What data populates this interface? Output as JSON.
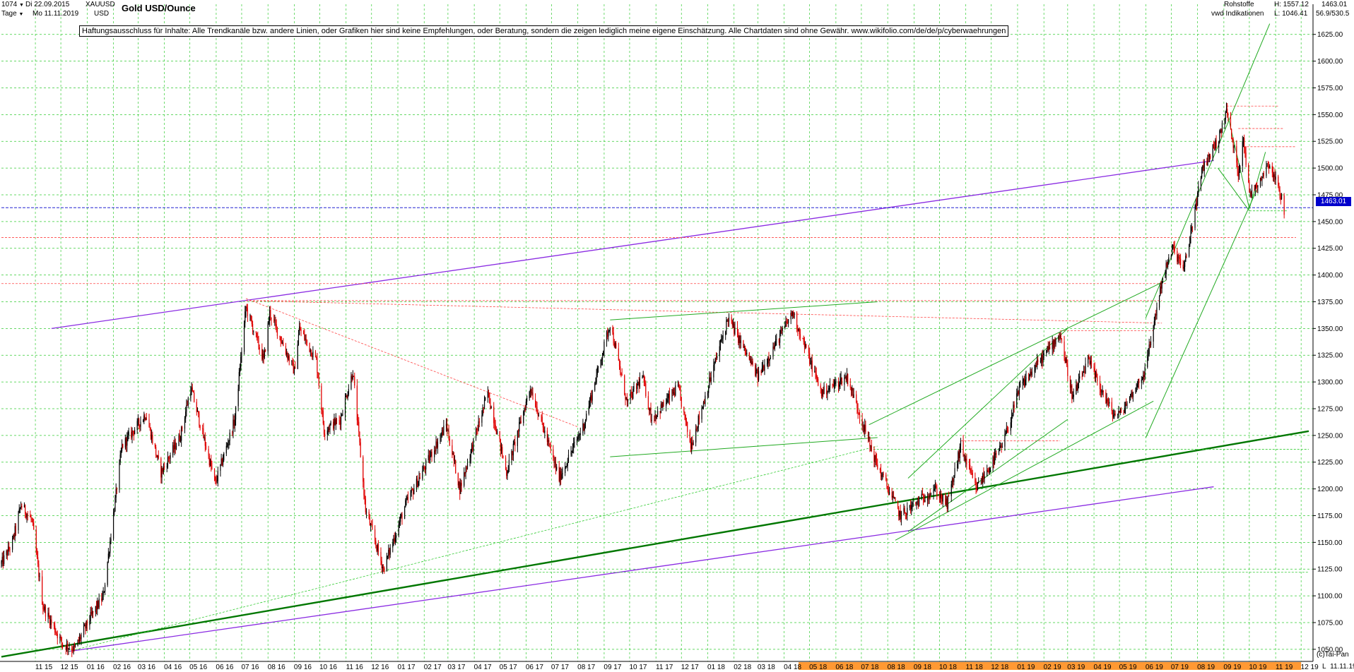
{
  "header": {
    "count": "1074",
    "count_arrow": "▼",
    "start_date": "Di 22.09.2015",
    "period": "Tage",
    "period_arrow": "▼",
    "end_date": "Mo 11.11.2019",
    "symbol": "XAUUSD",
    "currency": "USD",
    "title": "Gold USD/Ounce",
    "category": "Rohstoffe",
    "source": "vwd Indikationen",
    "high_label": "H: 1557.12",
    "low_label": "L: 1046.41",
    "last_value": "1463.01",
    "extra_value": "56.9/530.5"
  },
  "disclaimer": "Haftungsausschluss für Inhalte: Alle Trendkanäle bzw. andere Linien, oder Grafiken hier sind keine Empfehlungen, oder Beratung, sondern die zeigen lediglich meine eigene Einschätzung. Alle Chartdaten sind ohne Gewähr.  www.wikifolio.com/de/de/p/cyberwaehrungen",
  "footer": {
    "credit": "(c)Tai-Pan",
    "last_date": "11.11.19",
    "axis_letter": "L"
  },
  "colors": {
    "up_candle": "#000000",
    "down_candle": "#e00000",
    "grid": "#33cc33",
    "trend_green": "#007700",
    "channel_green": "#22aa22",
    "purple": "#8a2be2",
    "resistance_red": "#ff4444",
    "price_marker": "#0000cc",
    "future_band": "#ff9933"
  },
  "chart_data": {
    "type": "candlestick",
    "title": "Gold USD/Ounce",
    "ylim": [
      1040,
      1640
    ],
    "grid": true,
    "last_price": 1463.01,
    "high": 1557.12,
    "low": 1046.41,
    "yticks": [
      1050,
      1075,
      1100,
      1125,
      1150,
      1175,
      1200,
      1225,
      1250,
      1275,
      1300,
      1325,
      1350,
      1375,
      1400,
      1425,
      1450,
      1475,
      1500,
      1525,
      1550,
      1575,
      1600,
      1625
    ],
    "ytick_labels": [
      "1050.00",
      "1075.00",
      "1100.00",
      "1125.00",
      "1150.00",
      "1175.00",
      "1200.00",
      "1225.00",
      "1250.00",
      "1275.00",
      "1300.00",
      "1325.00",
      "1350.00",
      "1375.00",
      "1400.00",
      "1425.00",
      "1450.00",
      "1475.00",
      "1500.00",
      "1525.00",
      "1550.00",
      "1575.00",
      "1600.00",
      "1625.00"
    ],
    "xtick_labels": [
      "11 15",
      "12 15",
      "01 16",
      "02 16",
      "03 16",
      "04 16",
      "05 16",
      "06 16",
      "07 16",
      "08 16",
      "09 16",
      "10 16",
      "11 16",
      "12 16",
      "01 17",
      "02 17",
      "03 17",
      "04 17",
      "05 17",
      "06 17",
      "07 17",
      "08 17",
      "09 17",
      "10 17",
      "11 17",
      "12 17",
      "01 18",
      "02 18",
      "03 18",
      "04 18",
      "05 18",
      "06 18",
      "07 18",
      "08 18",
      "09 18",
      "10 18",
      "11 18",
      "12 18",
      "01 19",
      "02 19",
      "03 19",
      "04 19",
      "05 19",
      "06 19",
      "07 19",
      "08 19",
      "09 19",
      "10 19",
      "11 19",
      "12 19"
    ],
    "price_path": [
      [
        "2015-09-22",
        1130
      ],
      [
        "2015-10-05",
        1150
      ],
      [
        "2015-10-15",
        1185
      ],
      [
        "2015-10-28",
        1170
      ],
      [
        "2015-11-10",
        1090
      ],
      [
        "2015-12-03",
        1055
      ],
      [
        "2015-12-17",
        1050
      ],
      [
        "2016-01-05",
        1080
      ],
      [
        "2016-01-20",
        1100
      ],
      [
        "2016-02-11",
        1240
      ],
      [
        "2016-03-10",
        1270
      ],
      [
        "2016-03-28",
        1215
      ],
      [
        "2016-04-20",
        1250
      ],
      [
        "2016-05-02",
        1295
      ],
      [
        "2016-05-31",
        1205
      ],
      [
        "2016-06-23",
        1265
      ],
      [
        "2016-07-06",
        1370
      ],
      [
        "2016-07-27",
        1320
      ],
      [
        "2016-08-03",
        1365
      ],
      [
        "2016-09-01",
        1310
      ],
      [
        "2016-09-07",
        1350
      ],
      [
        "2016-09-27",
        1320
      ],
      [
        "2016-10-06",
        1255
      ],
      [
        "2016-10-25",
        1265
      ],
      [
        "2016-11-09",
        1310
      ],
      [
        "2016-11-24",
        1180
      ],
      [
        "2016-12-15",
        1125
      ],
      [
        "2017-01-10",
        1185
      ],
      [
        "2017-02-27",
        1260
      ],
      [
        "2017-03-15",
        1200
      ],
      [
        "2017-04-17",
        1290
      ],
      [
        "2017-05-09",
        1215
      ],
      [
        "2017-06-06",
        1295
      ],
      [
        "2017-07-10",
        1210
      ],
      [
        "2017-08-08",
        1260
      ],
      [
        "2017-09-08",
        1355
      ],
      [
        "2017-09-28",
        1280
      ],
      [
        "2017-10-16",
        1305
      ],
      [
        "2017-10-27",
        1265
      ],
      [
        "2017-11-27",
        1295
      ],
      [
        "2017-12-12",
        1240
      ],
      [
        "2018-01-25",
        1360
      ],
      [
        "2018-03-01",
        1305
      ],
      [
        "2018-04-11",
        1365
      ],
      [
        "2018-05-15",
        1290
      ],
      [
        "2018-06-14",
        1305
      ],
      [
        "2018-07-18",
        1225
      ],
      [
        "2018-08-16",
        1175
      ],
      [
        "2018-09-25",
        1200
      ],
      [
        "2018-10-10",
        1185
      ],
      [
        "2018-10-26",
        1240
      ],
      [
        "2018-11-13",
        1200
      ],
      [
        "2018-12-14",
        1240
      ],
      [
        "2019-01-04",
        1295
      ],
      [
        "2019-02-20",
        1345
      ],
      [
        "2019-03-07",
        1285
      ],
      [
        "2019-03-25",
        1320
      ],
      [
        "2019-04-23",
        1270
      ],
      [
        "2019-05-02",
        1270
      ],
      [
        "2019-05-31",
        1310
      ],
      [
        "2019-06-20",
        1395
      ],
      [
        "2019-07-03",
        1425
      ],
      [
        "2019-07-16",
        1405
      ],
      [
        "2019-08-07",
        1500
      ],
      [
        "2019-08-27",
        1530
      ],
      [
        "2019-09-04",
        1555
      ],
      [
        "2019-09-18",
        1495
      ],
      [
        "2019-09-24",
        1530
      ],
      [
        "2019-10-01",
        1475
      ],
      [
        "2019-10-14",
        1490
      ],
      [
        "2019-10-24",
        1505
      ],
      [
        "2019-11-05",
        1480
      ],
      [
        "2019-11-11",
        1460
      ]
    ],
    "horizontal_levels": [
      {
        "value": 1463.01,
        "style": "dashed",
        "color": "blue"
      },
      {
        "value": 1435,
        "style": "dashed",
        "color": "red"
      },
      {
        "value": 1392,
        "style": "dashed",
        "color": "red"
      },
      {
        "value": 1558,
        "style": "dashed",
        "color": "red"
      },
      {
        "value": 1537,
        "style": "dashed",
        "color": "red"
      },
      {
        "value": 1520,
        "style": "dashed",
        "color": "red"
      },
      {
        "value": 1237,
        "style": "dashed",
        "color": "green"
      },
      {
        "value": 1122,
        "style": "dashed",
        "color": "green"
      }
    ]
  }
}
